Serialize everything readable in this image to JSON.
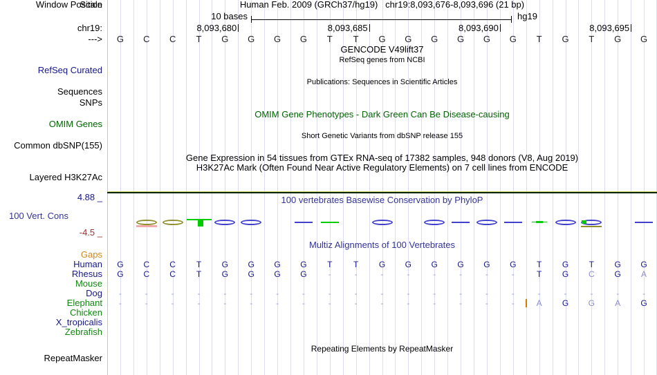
{
  "palette": {
    "title_blue": "#333399",
    "track_green": "#006400",
    "navy": "#16168c",
    "light_letter": "#8c8cce",
    "dash": "#9c9cd8",
    "gaps_orange": "#d2881e",
    "min_maroon": "#993333",
    "label_green": "#118611",
    "seq_black": "#222222",
    "glyph_olive": "#8f8f2e",
    "glyph_salmon": "#f0a8a8",
    "glyph_green": "#00cc00",
    "glyph_blue": "#4040cc",
    "insert_orange": "#dd7700",
    "h3k_yellow": "#cccc66",
    "h3k_dark": "#0b2607",
    "grid": "#dcdcf2",
    "edge_pink": "#ffb0b0"
  },
  "header": {
    "window_label": "Window Position",
    "assembly": "Human Feb. 2009 (GRCh37/hg19)",
    "position": "chr19:8,093,676-8,093,696 (21 bp)"
  },
  "scale": {
    "label": "Scale",
    "amount": "10 bases",
    "genome": "hg19"
  },
  "ruler": {
    "chrom": "chr19:",
    "tick_labels": [
      "8,093,680",
      "8,093,685",
      "8,093,690",
      "8,093,695"
    ]
  },
  "sequence": {
    "strand": "--->",
    "bases": "GCCTGGGGTTGGGGGGTGTGG"
  },
  "tracks": {
    "gencode": {
      "title": "GENCODE V49lift37",
      "subtitle": "RefSeq genes from NCBI"
    },
    "refseq": {
      "label": "RefSeq Curated"
    },
    "publications": {
      "title": "Publications: Sequences in Scientific Articles",
      "label_sequences": "Sequences",
      "label_snps": "SNPs"
    },
    "omim": {
      "title": "OMIM Gene Phenotypes - Dark Green Can Be Disease-causing",
      "label": "OMIM Genes"
    },
    "dbsnp": {
      "title": "Short Genetic Variants from dbSNP release 155",
      "label": "Common dbSNP(155)"
    },
    "gtex": {
      "title": "Gene Expression in 54 tissues from GTEx RNA-seq of 17382 samples, 948 donors (V8, Aug 2019)"
    },
    "h3k27ac": {
      "title": "H3K27Ac Mark (Often Found Near Active Regulatory Elements) on 7 cell lines from ENCODE",
      "label": "Layered H3K27Ac"
    },
    "conservation": {
      "title": "100 vertebrates Basewise Conservation by PhyloP",
      "label": "100 Vert. Cons",
      "max": "4.88 _",
      "min": "-4.5 _"
    },
    "multiz": {
      "title": "Multiz Alignments of 100 Vertebrates",
      "gaps": "Gaps"
    },
    "repeat": {
      "title": "Repeating Elements by RepeatMasker",
      "label": "RepeatMasker"
    }
  },
  "alignment": {
    "species": [
      {
        "name": "Human",
        "name_color": "navy",
        "seq": "GCCTGGGGTTGGGGGGTGTGG",
        "light": []
      },
      {
        "name": "Rhesus",
        "name_color": "navy",
        "seq": "GCCTGGGG--------TGCGA",
        "light": [
          18,
          20
        ]
      },
      {
        "name": "Mouse",
        "name_color": "green",
        "seq": ""
      },
      {
        "name": "Dog",
        "name_color": "navy",
        "seq": "---------------------",
        "light": []
      },
      {
        "name": "Elephant",
        "name_color": "green",
        "seq": "----------------AGGAG",
        "light": [
          16,
          18,
          19
        ],
        "insert_before": 16
      },
      {
        "name": "Chicken",
        "name_color": "green",
        "seq": ""
      },
      {
        "name": "X_tropicalis",
        "name_color": "navy",
        "seq": ""
      },
      {
        "name": "Zebrafish",
        "name_color": "green",
        "seq": ""
      }
    ]
  },
  "conservation_glyphs": [
    {
      "base": 1,
      "type": "lens",
      "color": "olive",
      "underline": "salmon"
    },
    {
      "base": 2,
      "type": "lens",
      "color": "olive"
    },
    {
      "base": 3,
      "type": "bar",
      "color": "green"
    },
    {
      "base": 4,
      "type": "lens",
      "color": "blue"
    },
    {
      "base": 5,
      "type": "lens",
      "color": "blue"
    },
    {
      "base": 7,
      "type": "thin",
      "color": "blue"
    },
    {
      "base": 8,
      "type": "thin",
      "color": "green"
    },
    {
      "base": 10,
      "type": "lens",
      "color": "blue"
    },
    {
      "base": 12,
      "type": "lens",
      "color": "blue"
    },
    {
      "base": 13,
      "type": "thin",
      "color": "blue"
    },
    {
      "base": 14,
      "type": "lens",
      "color": "blue"
    },
    {
      "base": 15,
      "type": "thin",
      "color": "blue"
    },
    {
      "base": 16,
      "type": "dash",
      "color": "green"
    },
    {
      "base": 17,
      "type": "lens",
      "color": "blue"
    },
    {
      "base": 18,
      "type": "lens",
      "color": "blue",
      "extra": "greensq",
      "underline": "olive"
    },
    {
      "base": 20,
      "type": "thin",
      "color": "blue"
    }
  ]
}
